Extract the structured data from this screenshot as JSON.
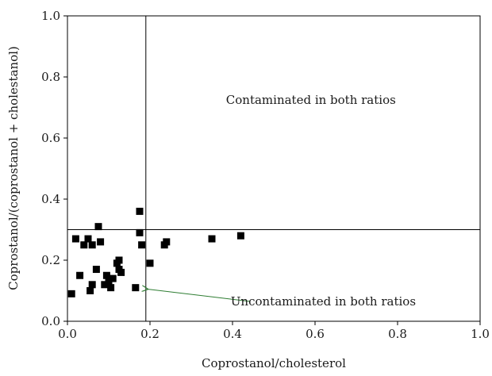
{
  "chart_data": {
    "type": "scatter",
    "title": "",
    "xlabel": "Coprostanol/cholesterol",
    "ylabel": "Coprostanol/(coprostanol + cholestanol)",
    "xlim": [
      0.0,
      1.0
    ],
    "ylim": [
      0.0,
      1.0
    ],
    "xticks": [
      "0.0",
      "0.2",
      "0.4",
      "0.6",
      "0.8",
      "1.0"
    ],
    "yticks": [
      "0.0",
      "0.2",
      "0.4",
      "0.6",
      "0.8",
      "1.0"
    ],
    "grid": false,
    "threshold_lines": {
      "x": 0.19,
      "y": 0.3
    },
    "series": [
      {
        "marker": "square",
        "color": "#000000",
        "points": [
          {
            "x": 0.01,
            "y": 0.09
          },
          {
            "x": 0.02,
            "y": 0.27
          },
          {
            "x": 0.03,
            "y": 0.15
          },
          {
            "x": 0.04,
            "y": 0.25
          },
          {
            "x": 0.05,
            "y": 0.27
          },
          {
            "x": 0.055,
            "y": 0.1
          },
          {
            "x": 0.06,
            "y": 0.12
          },
          {
            "x": 0.06,
            "y": 0.25
          },
          {
            "x": 0.07,
            "y": 0.17
          },
          {
            "x": 0.075,
            "y": 0.31
          },
          {
            "x": 0.08,
            "y": 0.26
          },
          {
            "x": 0.09,
            "y": 0.12
          },
          {
            "x": 0.095,
            "y": 0.15
          },
          {
            "x": 0.1,
            "y": 0.13
          },
          {
            "x": 0.105,
            "y": 0.11
          },
          {
            "x": 0.11,
            "y": 0.14
          },
          {
            "x": 0.12,
            "y": 0.19
          },
          {
            "x": 0.125,
            "y": 0.2
          },
          {
            "x": 0.125,
            "y": 0.17
          },
          {
            "x": 0.13,
            "y": 0.16
          },
          {
            "x": 0.165,
            "y": 0.11
          },
          {
            "x": 0.175,
            "y": 0.36
          },
          {
            "x": 0.175,
            "y": 0.29
          },
          {
            "x": 0.18,
            "y": 0.25
          },
          {
            "x": 0.2,
            "y": 0.19
          },
          {
            "x": 0.235,
            "y": 0.25
          },
          {
            "x": 0.24,
            "y": 0.26
          },
          {
            "x": 0.35,
            "y": 0.27
          },
          {
            "x": 0.42,
            "y": 0.28
          }
        ]
      }
    ],
    "annotations": [
      {
        "id": "contaminated",
        "text": "Contaminated in both ratios",
        "x": 0.59,
        "y": 0.725
      },
      {
        "id": "uncontaminated",
        "text": "Uncontaminated in both ratios",
        "x": 0.62,
        "y": 0.065,
        "arrow_to": {
          "x": 0.19,
          "y": 0.105
        },
        "arrow_color": "#2e7d32"
      }
    ]
  }
}
